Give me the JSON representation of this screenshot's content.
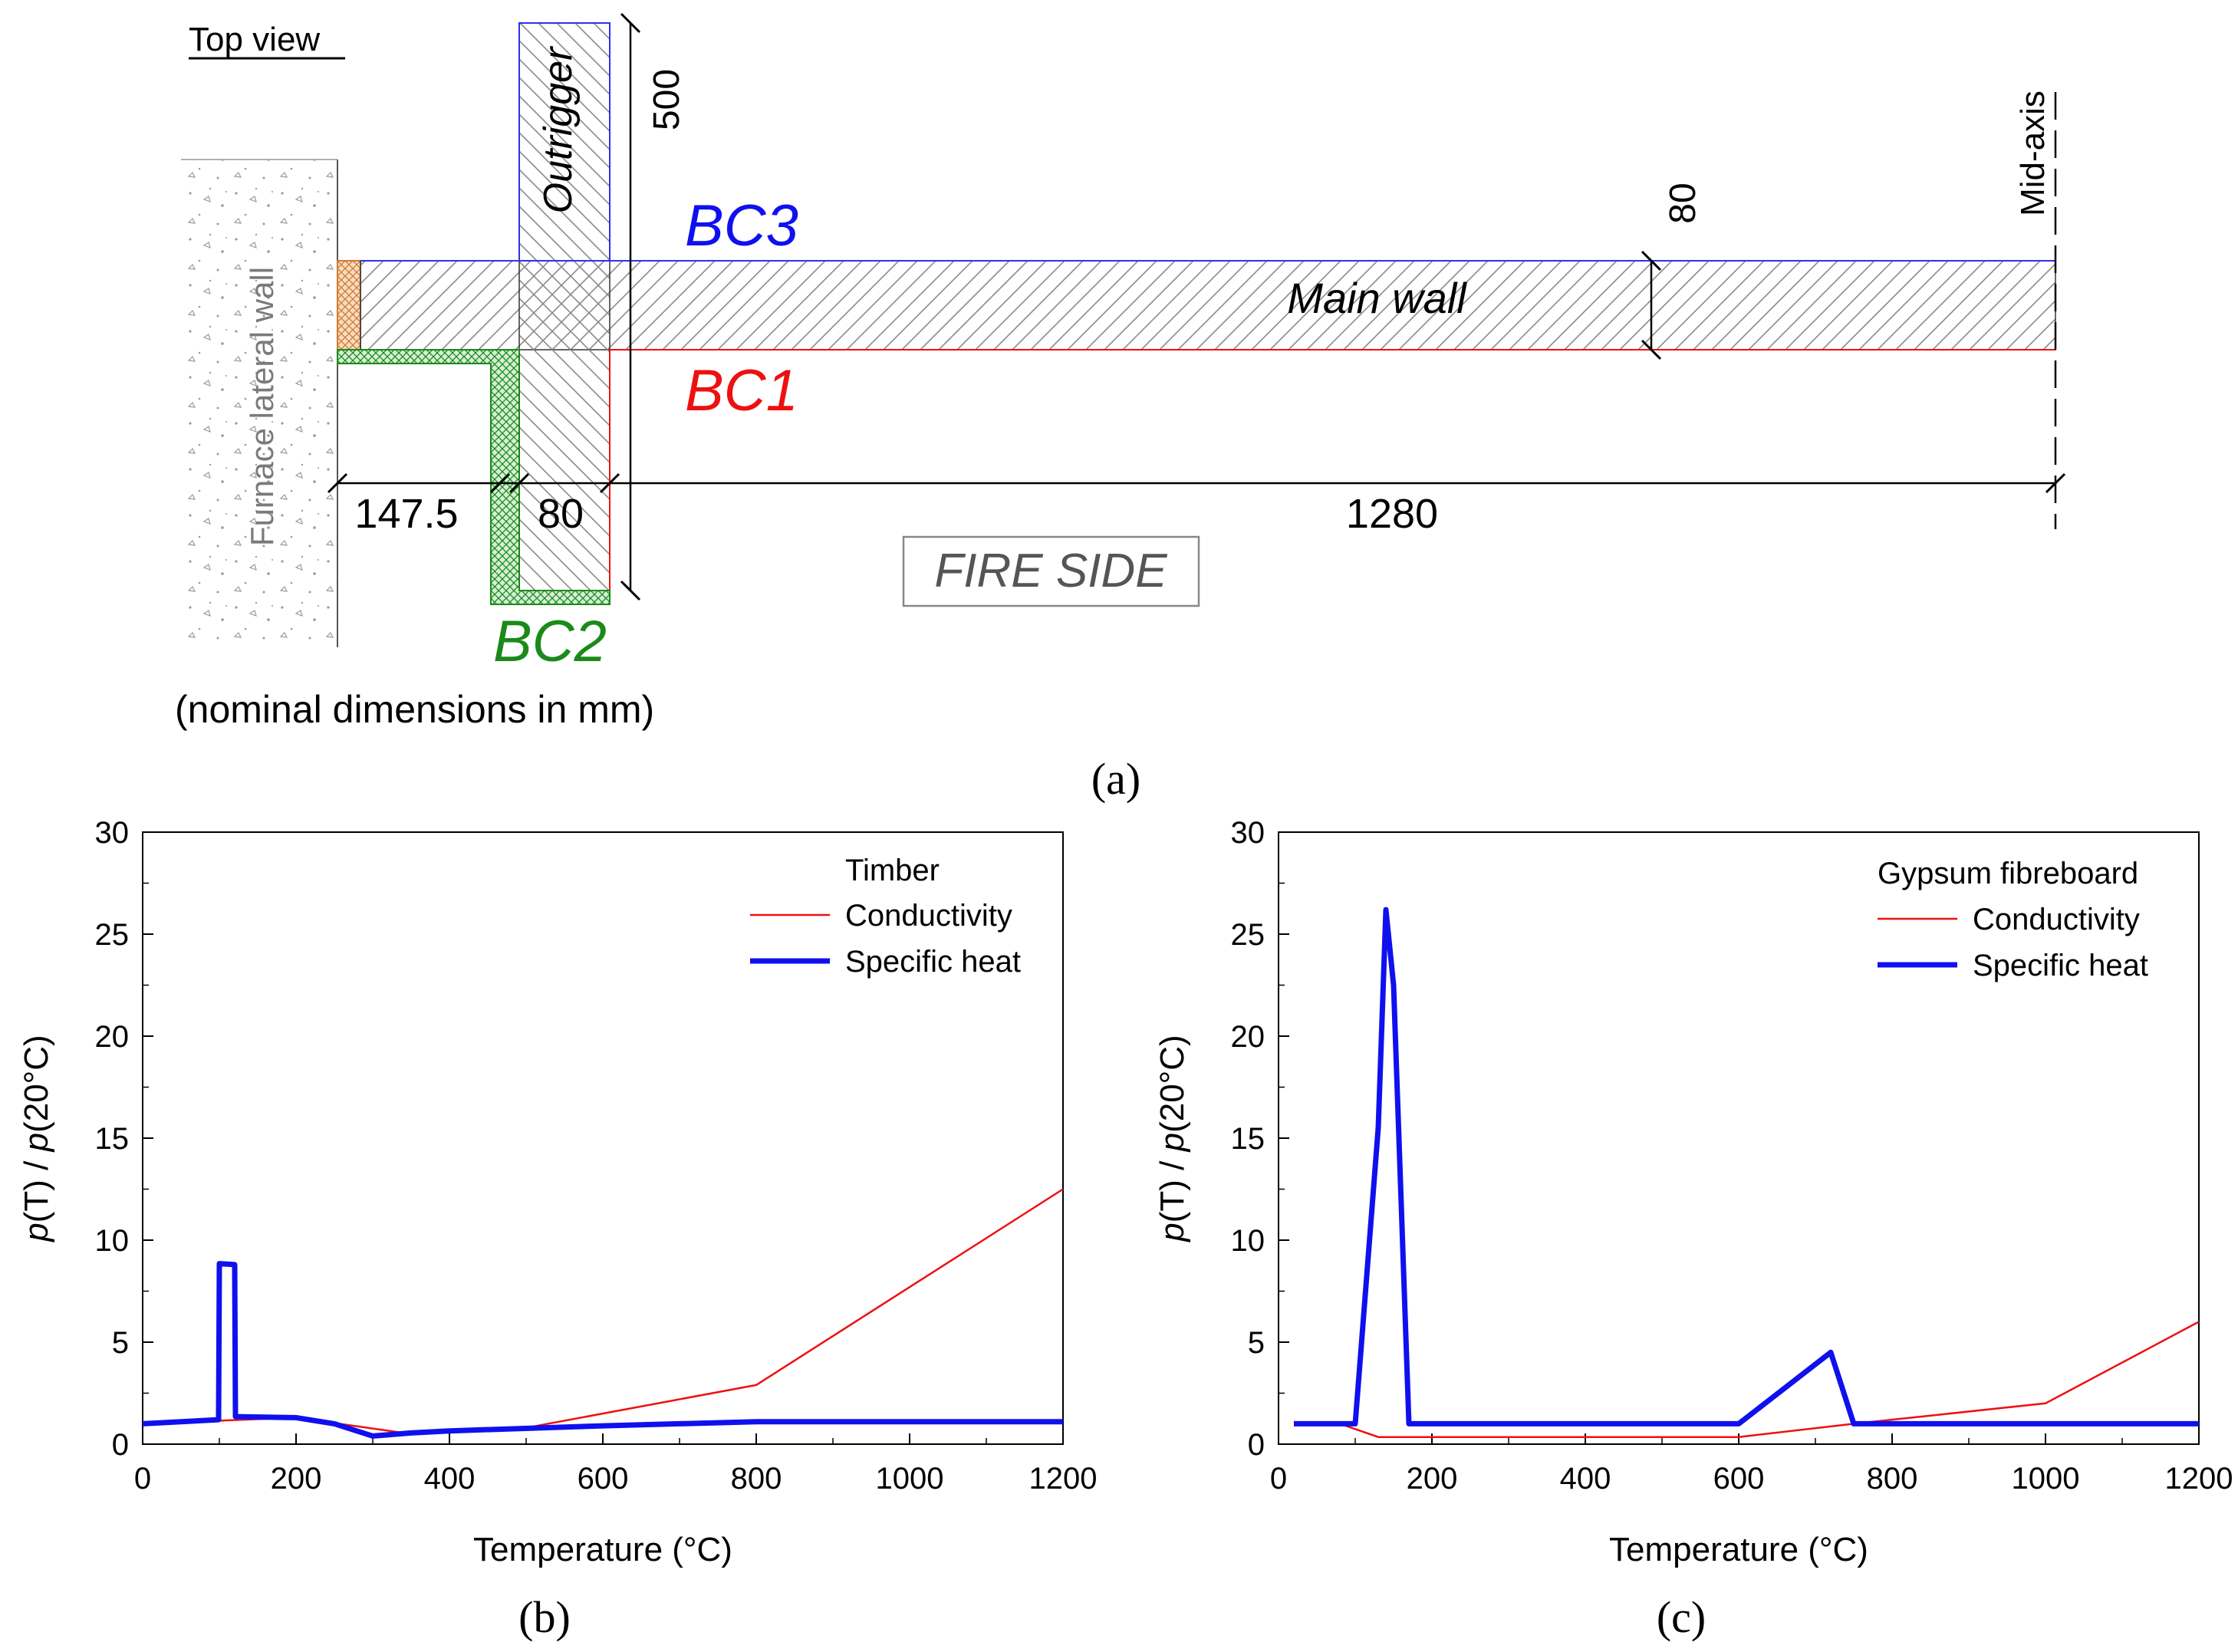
{
  "diagram": {
    "top_view": "Top view",
    "outrigger": "Outrigger",
    "dim_500": "500",
    "dim_80_right": "80",
    "mid_axis": "Mid-axis",
    "bc3": "BC3",
    "bc1": "BC1",
    "bc2": "BC2",
    "main_wall": "Main wall",
    "furnace_wall": "Furnace lateral wall",
    "dim_147_5": "147.5",
    "dim_80": "80",
    "dim_1280": "1280",
    "fire_side": "FIRE SIDE",
    "nominal": "(nominal dimensions in mm)",
    "panel_label": "(a)",
    "colors": {
      "bc3": "#1010ee",
      "bc1": "#ee1010",
      "bc2": "#1a8a1a",
      "hatch": "#888888",
      "insulation": "#d07a30"
    }
  },
  "chart_data": [
    {
      "type": "line",
      "panel": "(b)",
      "legend_title": "Timber",
      "xlabel": "Temperature  (°C)",
      "ylabel_prefix": "p",
      "ylabel_mid": "(T) / ",
      "ylabel_p2": "p",
      "ylabel_suffix": "(20°C)",
      "xlim": [
        0,
        1200
      ],
      "ylim": [
        0,
        30
      ],
      "xticks": [
        0,
        200,
        400,
        600,
        800,
        1000,
        1200
      ],
      "yticks": [
        0,
        5,
        10,
        15,
        20,
        25,
        30
      ],
      "series": [
        {
          "name": "Conductivity",
          "color": "#ee1010",
          "width": "thin",
          "points": [
            [
              0,
              1.0
            ],
            [
              100,
              1.15
            ],
            [
              200,
              1.3
            ],
            [
              350,
              0.5
            ],
            [
              500,
              0.8
            ],
            [
              800,
              2.9
            ],
            [
              1200,
              12.5
            ]
          ]
        },
        {
          "name": "Specific heat",
          "color": "#1010ee",
          "width": "thick",
          "points": [
            [
              0,
              1.0
            ],
            [
              99,
              1.2
            ],
            [
              100,
              8.85
            ],
            [
              120,
              8.8
            ],
            [
              121,
              1.35
            ],
            [
              200,
              1.3
            ],
            [
              250,
              1.0
            ],
            [
              300,
              0.4
            ],
            [
              350,
              0.55
            ],
            [
              400,
              0.65
            ],
            [
              600,
              0.9
            ],
            [
              800,
              1.1
            ],
            [
              1200,
              1.1
            ]
          ]
        }
      ]
    },
    {
      "type": "line",
      "panel": "(c)",
      "legend_title": "Gypsum fibreboard",
      "xlabel": "Temperature  (°C)",
      "ylabel_prefix": "p",
      "ylabel_mid": "(T) / ",
      "ylabel_p2": "p",
      "ylabel_suffix": "(20°C)",
      "xlim": [
        0,
        1200
      ],
      "ylim": [
        0,
        30
      ],
      "xticks": [
        0,
        200,
        400,
        600,
        800,
        1000,
        1200
      ],
      "yticks": [
        0,
        5,
        10,
        15,
        20,
        25,
        30
      ],
      "series": [
        {
          "name": "Conductivity",
          "color": "#ee1010",
          "width": "thin",
          "points": [
            [
              20,
              1.0
            ],
            [
              80,
              1.0
            ],
            [
              130,
              0.35
            ],
            [
              600,
              0.35
            ],
            [
              750,
              1.0
            ],
            [
              1000,
              2.0
            ],
            [
              1200,
              6.0
            ]
          ]
        },
        {
          "name": "Specific heat",
          "color": "#1010ee",
          "width": "thick",
          "points": [
            [
              20,
              1.0
            ],
            [
              100,
              1.0
            ],
            [
              130,
              15.5
            ],
            [
              140,
              26.2
            ],
            [
              150,
              22.5
            ],
            [
              170,
              1.0
            ],
            [
              600,
              1.0
            ],
            [
              720,
              4.5
            ],
            [
              750,
              1.0
            ],
            [
              1200,
              1.0
            ]
          ]
        }
      ]
    }
  ]
}
